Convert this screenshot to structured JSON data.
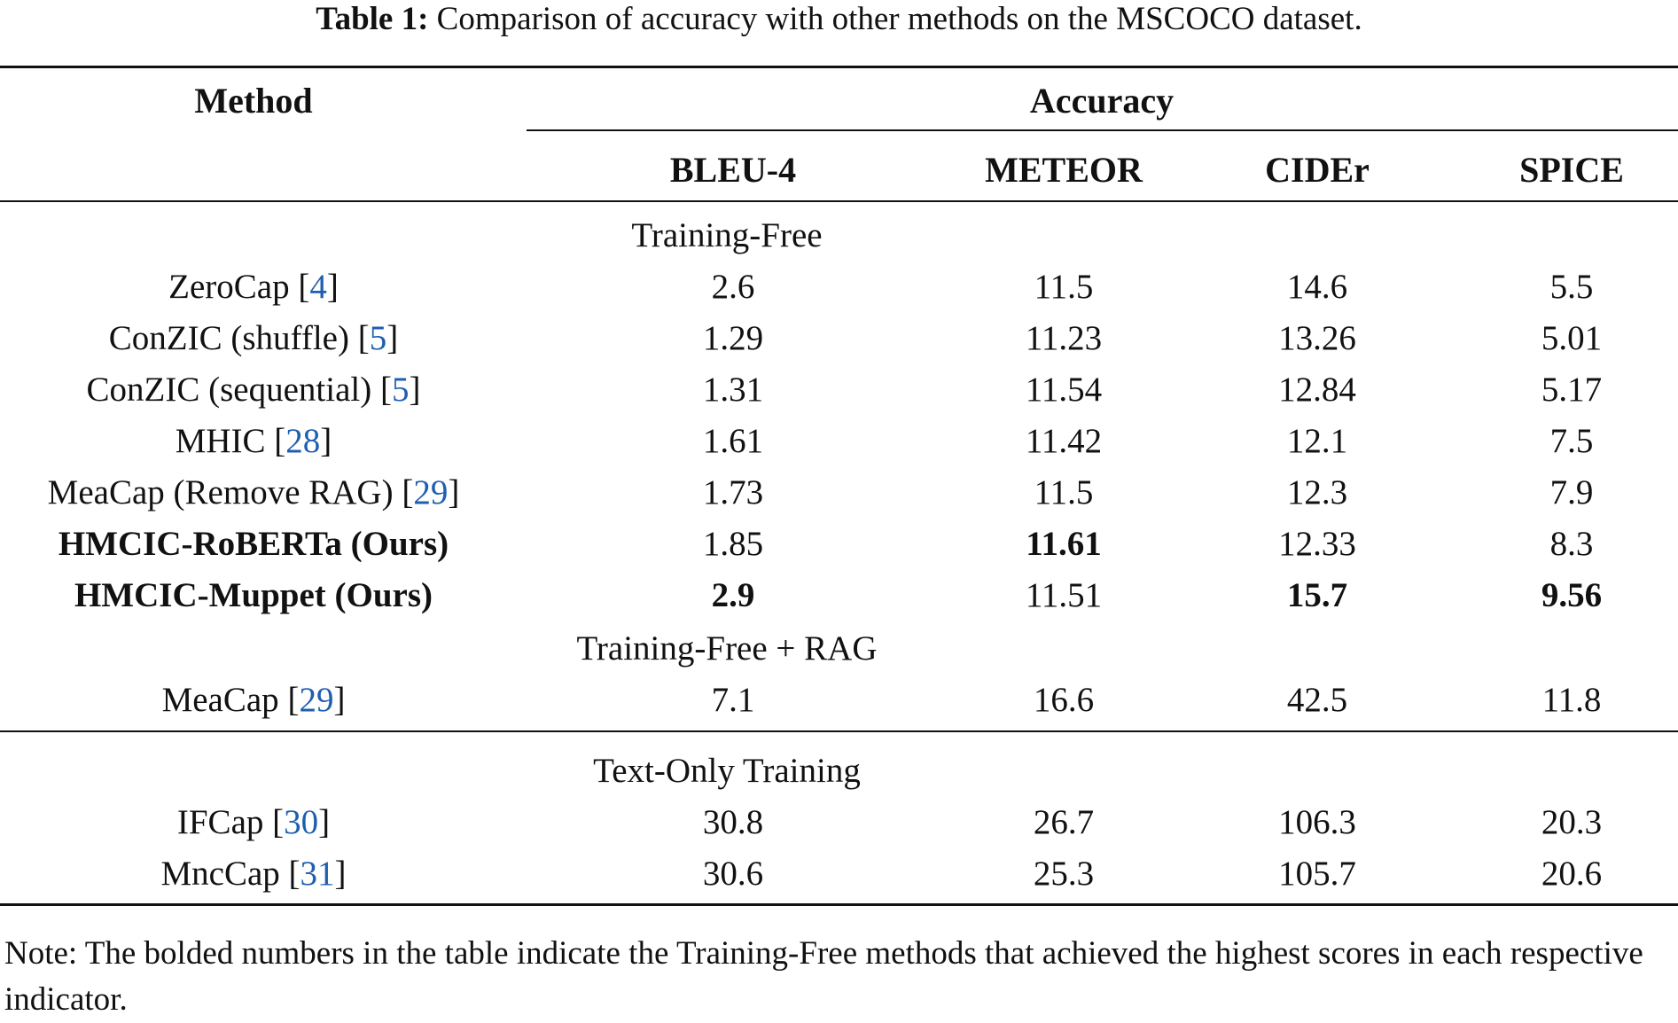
{
  "caption": {
    "label": "Table 1:",
    "text": "Comparison of accuracy with other methods on the MSCOCO dataset."
  },
  "header": {
    "method": "Method",
    "accuracy": "Accuracy",
    "columns": [
      "BLEU-4",
      "METEOR",
      "CIDEr",
      "SPICE"
    ]
  },
  "groups": [
    {
      "label": "Training-Free",
      "rows": [
        {
          "name": "ZeroCap",
          "ref": "4",
          "bleu4": "2.6",
          "meteor": "11.5",
          "cider": "14.6",
          "spice": "5.5"
        },
        {
          "name": "ConZIC (shuffle)",
          "ref": "5",
          "bleu4": "1.29",
          "meteor": "11.23",
          "cider": "13.26",
          "spice": "5.01"
        },
        {
          "name": "ConZIC (sequential)",
          "ref": "5",
          "bleu4": "1.31",
          "meteor": "11.54",
          "cider": "12.84",
          "spice": "5.17"
        },
        {
          "name": "MHIC",
          "ref": "28",
          "bleu4": "1.61",
          "meteor": "11.42",
          "cider": "12.1",
          "spice": "7.5"
        },
        {
          "name": "MeaCap (Remove RAG)",
          "ref": "29",
          "bleu4": "1.73",
          "meteor": "11.5",
          "cider": "12.3",
          "spice": "7.9"
        },
        {
          "name": "HMCIC-RoBERTa (Ours)",
          "ref": "",
          "bleu4": "1.85",
          "meteor": "11.61",
          "cider": "12.33",
          "spice": "8.3",
          "bold_cells": [
            "name",
            "meteor"
          ]
        },
        {
          "name": "HMCIC-Muppet (Ours)",
          "ref": "",
          "bleu4": "2.9",
          "meteor": "11.51",
          "cider": "15.7",
          "spice": "9.56",
          "bold_cells": [
            "name",
            "bleu4",
            "cider",
            "spice"
          ]
        }
      ]
    },
    {
      "label": "Training-Free + RAG",
      "rows": [
        {
          "name": "MeaCap",
          "ref": "29",
          "bleu4": "7.1",
          "meteor": "16.6",
          "cider": "42.5",
          "spice": "11.8"
        }
      ]
    },
    {
      "label": "Text-Only Training",
      "rows": [
        {
          "name": "IFCap",
          "ref": "30",
          "bleu4": "30.8",
          "meteor": "26.7",
          "cider": "106.3",
          "spice": "20.3"
        },
        {
          "name": "MncCap",
          "ref": "31",
          "bleu4": "30.6",
          "meteor": "25.3",
          "cider": "105.7",
          "spice": "20.6"
        }
      ]
    }
  ],
  "note": "Note: The bolded numbers in the table indicate the Training-Free methods that achieved the highest scores in each respective indicator.",
  "colors": {
    "text": "#111111",
    "reference_link": "#1f5fb0"
  }
}
